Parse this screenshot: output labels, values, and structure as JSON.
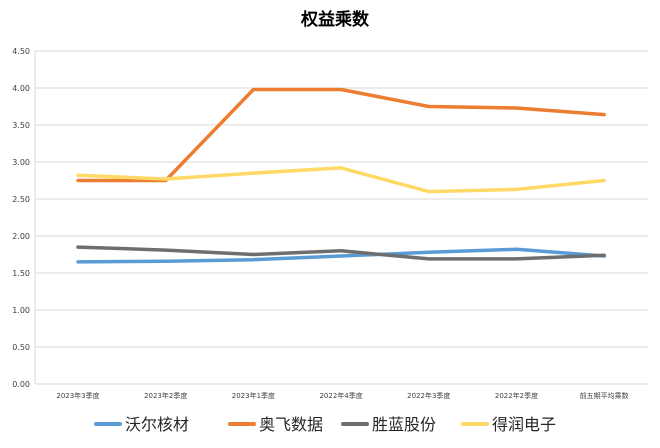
{
  "chart_data": {
    "type": "line",
    "title": "权益乘数",
    "xlabel": "",
    "ylabel": "",
    "categories": [
      "2023年3季度",
      "2023年2季度",
      "2023年1季度",
      "2022年4季度",
      "2022年3季度",
      "2022年2季度",
      "前五期平均乘数"
    ],
    "ylim": [
      0,
      4.5
    ],
    "yticks": [
      "0.00",
      "0.50",
      "1.00",
      "1.50",
      "2.00",
      "2.50",
      "3.00",
      "3.50",
      "4.00",
      "4.50"
    ],
    "grid": true,
    "legend_position": "bottom",
    "series": [
      {
        "name": "沃尔核材",
        "color": "#5b9bd5",
        "values": [
          1.65,
          1.66,
          1.68,
          1.73,
          1.78,
          1.82,
          1.73
        ]
      },
      {
        "name": "奥飞数据",
        "color": "#ed7d31",
        "values": [
          2.75,
          2.75,
          3.98,
          3.98,
          3.75,
          3.73,
          3.64
        ]
      },
      {
        "name": "胜蓝股份",
        "color": "#6e6e6e",
        "values": [
          1.85,
          1.81,
          1.75,
          1.8,
          1.69,
          1.69,
          1.74
        ]
      },
      {
        "name": "得润电子",
        "color": "#ffd966",
        "values": [
          2.82,
          2.77,
          2.85,
          2.92,
          2.6,
          2.63,
          2.75
        ]
      }
    ]
  }
}
